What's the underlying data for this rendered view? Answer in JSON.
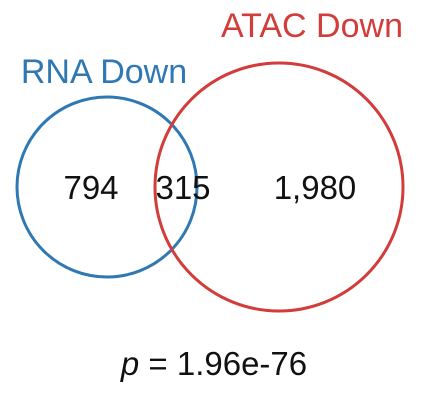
{
  "sets": {
    "left": {
      "label": "RNA Down",
      "color": "#2f78b4"
    },
    "right": {
      "label": "ATAC Down",
      "color": "#d23c3a"
    }
  },
  "counts": {
    "left_only": "794",
    "overlap": "315",
    "right_only": "1,980"
  },
  "stat": {
    "symbol": "p",
    "text": " = 1.96e-76"
  }
}
